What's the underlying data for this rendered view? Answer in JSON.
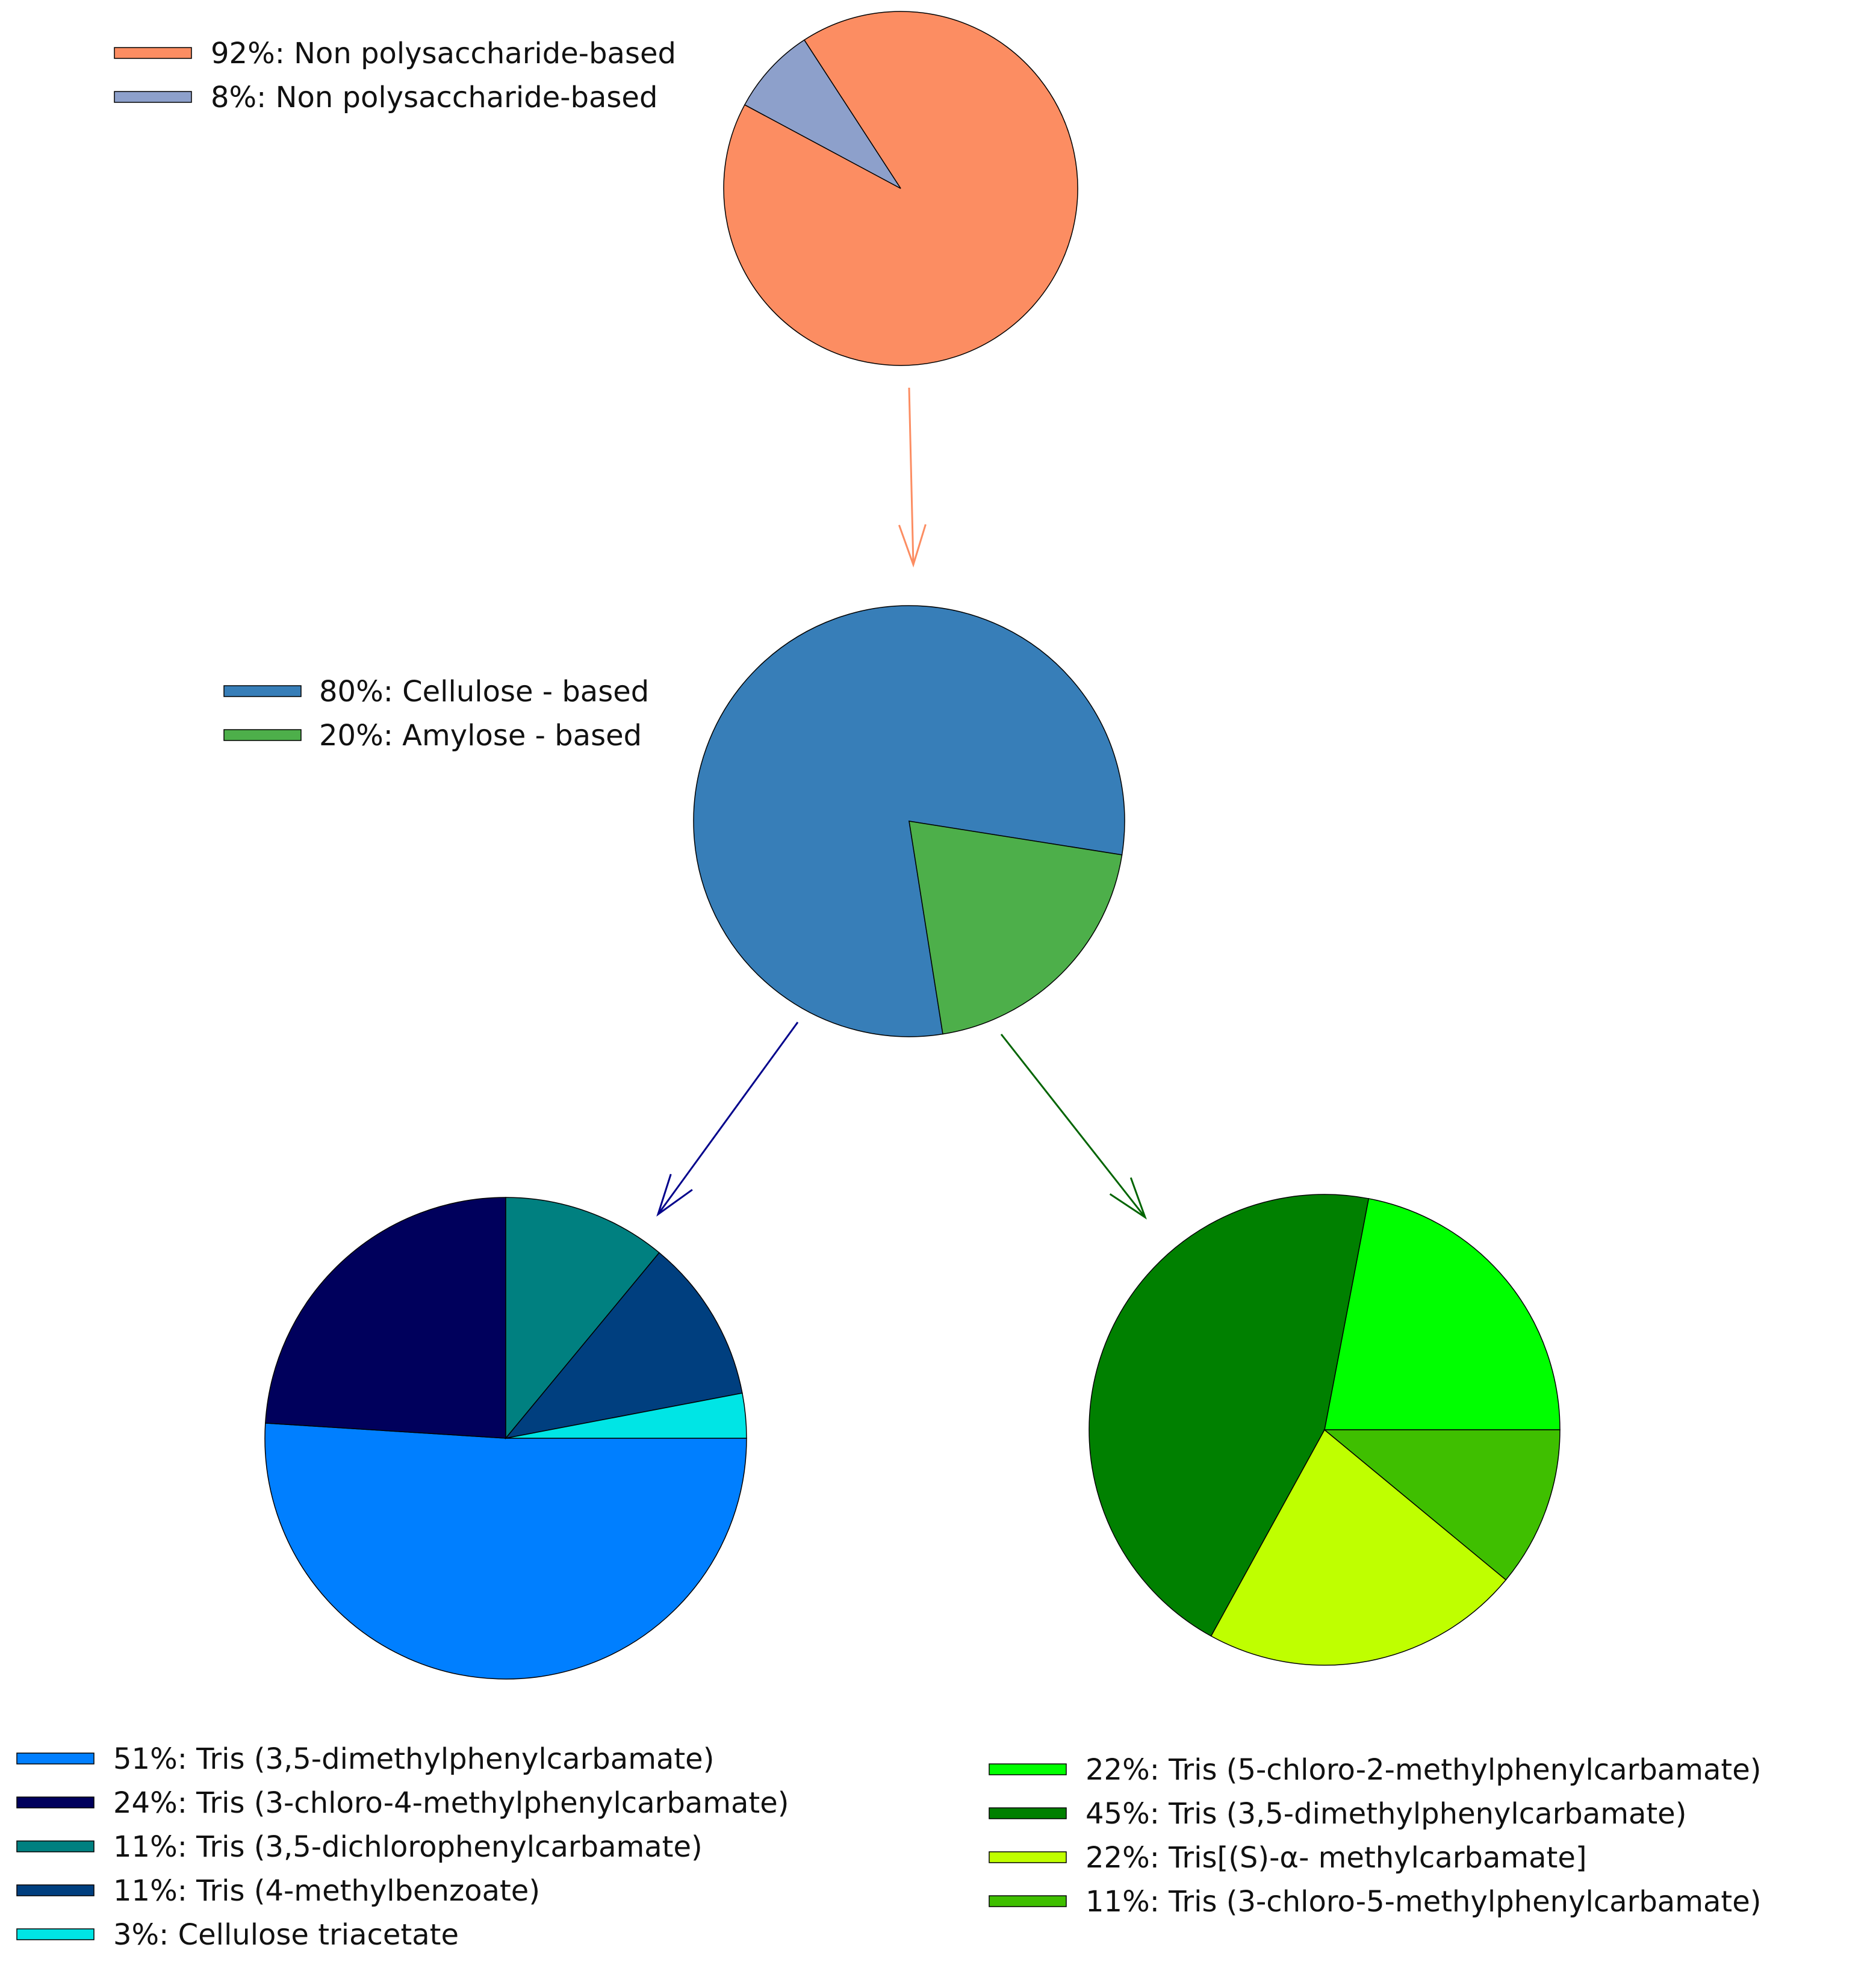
{
  "chart_data": [
    {
      "type": "pie",
      "title": "",
      "slices": [
        {
          "label": "92%: Non polysaccharide-based",
          "value": 92,
          "color": "#FC8D62"
        },
        {
          "label": "8%: Non polysaccharide-based",
          "value": 8,
          "color": "#8DA0CB"
        }
      ],
      "legend_position": "top-left"
    },
    {
      "type": "pie",
      "title": "",
      "slices": [
        {
          "label": "80%: Cellulose - based",
          "value": 80,
          "color": "#377EB8"
        },
        {
          "label": "20%: Amylose - based",
          "value": 20,
          "color": "#4DAF4A"
        }
      ],
      "legend_position": "left"
    },
    {
      "type": "pie",
      "title": "",
      "slices": [
        {
          "label": "51%: Tris (3,5-dimethylphenylcarbamate)",
          "value": 51,
          "color": "#007FFF"
        },
        {
          "label": "24%: Tris (3-chloro-4-methylphenylcarbamate)",
          "value": 24,
          "color": "#00005C"
        },
        {
          "label": "11%: Tris (3,5-dichlorophenylcarbamate)",
          "value": 11,
          "color": "#008080"
        },
        {
          "label": "11%: Tris (4-methylbenzoate)",
          "value": 11,
          "color": "#003F7F"
        },
        {
          "label": "3%: Cellulose triacetate",
          "value": 3,
          "color": "#00E5E5"
        }
      ],
      "legend_position": "bottom-left"
    },
    {
      "type": "pie",
      "title": "",
      "slices": [
        {
          "label": "22%:  Tris (5-chloro-2-methylphenylcarbamate)",
          "value": 22,
          "color": "#00FF00"
        },
        {
          "label": "45%: Tris (3,5-dimethylphenylcarbamate)",
          "value": 45,
          "color": "#008000"
        },
        {
          "label": "22%: Tris[(S)-α- methylcarbamate]",
          "value": 22,
          "color": "#BFFF00"
        },
        {
          "label": "11%: Tris (3-chloro-5-methylphenylcarbamate)",
          "value": 11,
          "color": "#3FBF00"
        }
      ],
      "legend_position": "bottom-right"
    }
  ],
  "arrows": [
    {
      "from": "pie-1",
      "to": "pie-2",
      "color": "#FC8D62"
    },
    {
      "from": "pie-2",
      "to": "pie-3",
      "color": "#00008B"
    },
    {
      "from": "pie-2",
      "to": "pie-4",
      "color": "#006400"
    }
  ]
}
